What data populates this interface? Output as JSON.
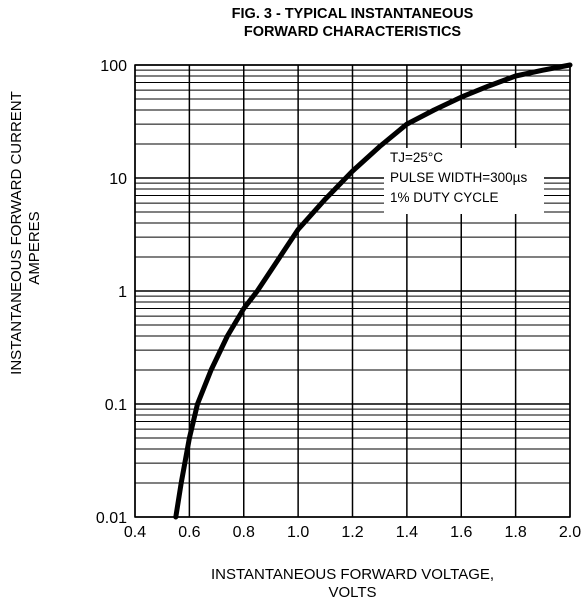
{
  "chart_data": {
    "type": "line",
    "title_line1": "FIG. 3 - TYPICAL INSTANTANEOUS",
    "title_line2": "FORWARD CHARACTERISTICS",
    "ylabel_line1": "INSTANTANEOUS FORWARD  CURRENT",
    "ylabel_line2": "AMPERES",
    "xlabel_line1": "INSTANTANEOUS FORWARD VOLTAGE,",
    "xlabel_line2": "VOLTS",
    "annotation": {
      "line1": "TJ=25°C",
      "line2": "PULSE WIDTH=300µs",
      "line3": "1% DUTY CYCLE"
    },
    "xlim": [
      0.4,
      2.0
    ],
    "ylim": [
      0.01,
      100
    ],
    "yscale": "log",
    "grid": true,
    "x_ticks": [
      "0.4",
      "0.6",
      "0.8",
      "1.0",
      "1.2",
      "1.4",
      "1.6",
      "1.8",
      "2.0"
    ],
    "y_ticks": [
      "0.01",
      "0.1",
      "1",
      "10",
      "100"
    ],
    "series": [
      {
        "x": [
          0.55,
          0.57,
          0.6,
          0.63,
          0.68,
          0.74,
          0.8,
          0.85,
          0.92,
          1.0,
          1.1,
          1.2,
          1.3,
          1.4,
          1.5,
          1.6,
          1.7,
          1.8,
          1.9,
          2.0
        ],
        "y": [
          0.01,
          0.02,
          0.05,
          0.1,
          0.2,
          0.4,
          0.7,
          1.0,
          1.8,
          3.5,
          6.5,
          11.5,
          19,
          30,
          40,
          52,
          65,
          80,
          90,
          100
        ]
      }
    ]
  }
}
